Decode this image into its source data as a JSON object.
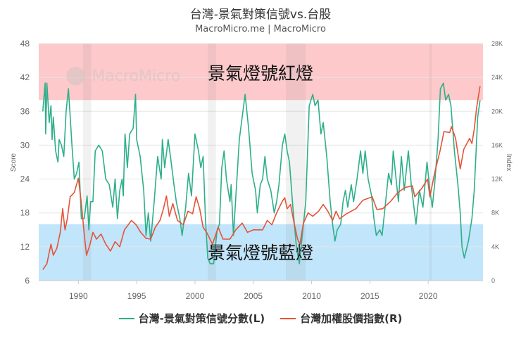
{
  "chart_data": {
    "type": "line",
    "title": "台灣-景氣對策信號vs.台股",
    "subtitle": "MacroMicro.me | MacroMicro",
    "watermark": "MacroMicro",
    "legend_position": "bottom",
    "grid": true,
    "x_axis": {
      "ticks": [
        "1990",
        "1995",
        "2000",
        "2005",
        "2010",
        "2015",
        "2020"
      ],
      "range": [
        1986.6,
        2024.7
      ]
    },
    "y_left": {
      "label": "Score",
      "ticks": [
        "6",
        "12",
        "18",
        "24",
        "30",
        "36",
        "42",
        "48"
      ],
      "range": [
        6,
        48
      ]
    },
    "y_right": {
      "label": "Index",
      "ticks": [
        "0",
        "4K",
        "8K",
        "12K",
        "16K",
        "20K",
        "24K",
        "28K"
      ],
      "range": [
        0,
        28000
      ]
    },
    "bands": [
      {
        "label": "景氣燈號紅燈",
        "from": 38,
        "to": 48,
        "color": "#fdc9cb"
      },
      {
        "label": "景氣燈號藍燈",
        "from": 6,
        "to": 16,
        "color": "#c1e5fb"
      }
    ],
    "recessions": [
      [
        1990.4,
        1991.1
      ],
      [
        2001.1,
        2001.8
      ],
      [
        2007.8,
        2009.5
      ],
      [
        2020.1,
        2020.3
      ]
    ],
    "series": [
      {
        "name": "台灣-景氣對策信號分數(L)",
        "axis": "left",
        "color": "#2eaf8a",
        "x": [
          1986.95,
          1987.15,
          1987.2,
          1987.3,
          1987.5,
          1987.65,
          1987.75,
          1987.85,
          1988.05,
          1988.25,
          1988.35,
          1988.55,
          1988.75,
          1988.95,
          1989.15,
          1989.45,
          1989.65,
          1989.85,
          1990.05,
          1990.25,
          1990.5,
          1990.75,
          1990.9,
          1991.05,
          1991.25,
          1991.45,
          1991.75,
          1992.05,
          1992.35,
          1992.65,
          1992.95,
          1993.15,
          1993.35,
          1993.55,
          1993.75,
          1993.85,
          1994.0,
          1994.2,
          1994.4,
          1994.7,
          1994.9,
          1995.0,
          1995.3,
          1995.6,
          1995.8,
          1996.0,
          1996.2,
          1996.5,
          1996.8,
          1997.1,
          1997.2,
          1997.4,
          1997.7,
          1997.9,
          1998.2,
          1998.4,
          1998.7,
          1998.9,
          1999.2,
          1999.45,
          1999.7,
          2000.0,
          2000.3,
          2000.5,
          2000.7,
          2000.9,
          2001.1,
          2001.3,
          2001.6,
          2001.9,
          2002.1,
          2002.3,
          2002.5,
          2002.7,
          2003.0,
          2003.1,
          2003.3,
          2003.6,
          2003.8,
          2004.05,
          2004.3,
          2004.6,
          2004.9,
          2005.2,
          2005.35,
          2005.6,
          2005.8,
          2006.0,
          2006.2,
          2006.5,
          2006.8,
          2007.0,
          2007.2,
          2007.5,
          2007.7,
          2007.9,
          2008.1,
          2008.4,
          2008.7,
          2008.95,
          2009.2,
          2009.5,
          2009.8,
          2010.1,
          2010.3,
          2010.55,
          2010.8,
          2011.0,
          2011.3,
          2011.6,
          2011.8,
          2012.0,
          2012.2,
          2012.5,
          2012.7,
          2012.9,
          2013.1,
          2013.4,
          2013.6,
          2013.9,
          2014.2,
          2014.4,
          2014.6,
          2014.85,
          2015.15,
          2015.35,
          2015.55,
          2015.85,
          2016.05,
          2016.25,
          2016.6,
          2016.85,
          2017.0,
          2017.25,
          2017.45,
          2017.7,
          2017.95,
          2018.3,
          2018.55,
          2018.95,
          2019.25,
          2019.55,
          2019.9,
          2020.15,
          2020.35,
          2020.55,
          2020.85,
          2021.05,
          2021.3,
          2021.5,
          2021.75,
          2021.95,
          2022.25,
          2022.55,
          2022.75,
          2022.9,
          2023.1,
          2023.45,
          2023.75,
          2023.95,
          2024.25,
          2024.45
        ],
        "values": [
          36,
          41,
          32,
          41,
          34,
          37,
          31,
          35,
          29,
          27,
          31,
          30,
          28,
          36,
          40,
          30,
          24,
          25,
          27,
          17,
          17,
          21,
          15,
          20,
          20,
          29,
          30,
          29,
          24,
          23,
          19,
          24,
          17,
          22,
          24,
          21,
          32,
          26,
          32,
          33,
          39,
          31,
          28,
          22,
          14,
          18,
          13,
          20,
          28,
          24,
          31,
          26,
          31,
          28,
          23,
          20,
          17,
          14,
          19,
          25,
          21,
          32,
          29,
          26,
          28,
          17,
          10,
          9,
          9,
          15,
          16,
          26,
          29,
          24,
          20,
          23,
          14,
          24,
          31,
          35,
          39,
          33,
          25,
          22,
          18,
          23,
          24,
          28,
          24,
          22,
          18,
          20,
          23,
          30,
          32,
          29,
          27,
          19,
          12,
          9,
          14,
          20,
          37,
          39,
          37,
          38,
          32,
          34,
          28,
          20,
          16,
          13,
          15,
          16,
          20,
          22,
          19,
          23,
          20,
          24,
          29,
          25,
          29,
          24,
          21,
          17,
          14,
          15,
          14,
          18,
          25,
          23,
          29,
          24,
          20,
          28,
          22,
          29,
          23,
          16,
          22,
          19,
          27,
          22,
          19,
          23,
          31,
          40,
          41,
          38,
          39,
          37,
          29,
          23,
          18,
          12,
          10,
          13,
          17,
          22,
          35,
          38
        ]
      },
      {
        "name": "台灣加權股價指數(R)",
        "axis": "right",
        "color": "#e5533a",
        "x": [
          1986.95,
          1987.3,
          1987.65,
          1987.85,
          1988.15,
          1988.45,
          1988.65,
          1988.85,
          1989.05,
          1989.3,
          1989.65,
          1990.0,
          1990.25,
          1990.5,
          1990.7,
          1991.0,
          1991.25,
          1991.55,
          1991.95,
          1992.35,
          1992.75,
          1993.15,
          1993.55,
          1993.95,
          1994.55,
          1994.95,
          1995.35,
          1995.8,
          1996.2,
          1996.6,
          1997.0,
          1997.3,
          1997.55,
          1997.8,
          1998.1,
          1998.5,
          1999.0,
          1999.4,
          1999.8,
          2000.1,
          2000.4,
          2000.7,
          2001.0,
          2001.5,
          2002.0,
          2002.4,
          2003.0,
          2003.5,
          2004.05,
          2004.5,
          2005.0,
          2005.8,
          2006.2,
          2006.6,
          2007.0,
          2007.5,
          2007.7,
          2007.9,
          2008.2,
          2008.5,
          2008.8,
          2009.0,
          2009.3,
          2009.7,
          2010.1,
          2010.6,
          2011.0,
          2011.4,
          2011.8,
          2012.1,
          2012.4,
          2013.0,
          2013.8,
          2014.4,
          2015.2,
          2015.6,
          2016.1,
          2016.8,
          2017.4,
          2018.0,
          2018.65,
          2018.85,
          2019.45,
          2019.95,
          2020.15,
          2020.55,
          2021.05,
          2021.35,
          2021.85,
          2022.0,
          2022.35,
          2022.75,
          2023.05,
          2023.55,
          2023.75,
          2023.95,
          2024.15,
          2024.45
        ],
        "values": [
          1300,
          2000,
          4300,
          3000,
          3800,
          5700,
          8500,
          6000,
          7300,
          9900,
          10400,
          12100,
          9200,
          5500,
          3000,
          4300,
          5700,
          4900,
          5500,
          4300,
          3500,
          4600,
          4000,
          6000,
          7100,
          6600,
          5700,
          5000,
          4900,
          6300,
          7100,
          8500,
          10000,
          7600,
          9100,
          7100,
          6600,
          8200,
          7900,
          9900,
          8500,
          6300,
          5700,
          4300,
          6300,
          4900,
          4900,
          6000,
          6800,
          5700,
          6000,
          6000,
          7100,
          6600,
          8000,
          9400,
          9800,
          8500,
          9000,
          6800,
          4900,
          4300,
          6800,
          8000,
          7600,
          8200,
          9000,
          8200,
          7100,
          8200,
          7300,
          7900,
          8500,
          9500,
          9900,
          8400,
          8500,
          9400,
          10400,
          11000,
          11200,
          9900,
          10900,
          12000,
          9900,
          12700,
          15500,
          17600,
          17500,
          18200,
          16800,
          13200,
          15500,
          16800,
          16200,
          17900,
          20400,
          23000
        ]
      }
    ]
  }
}
